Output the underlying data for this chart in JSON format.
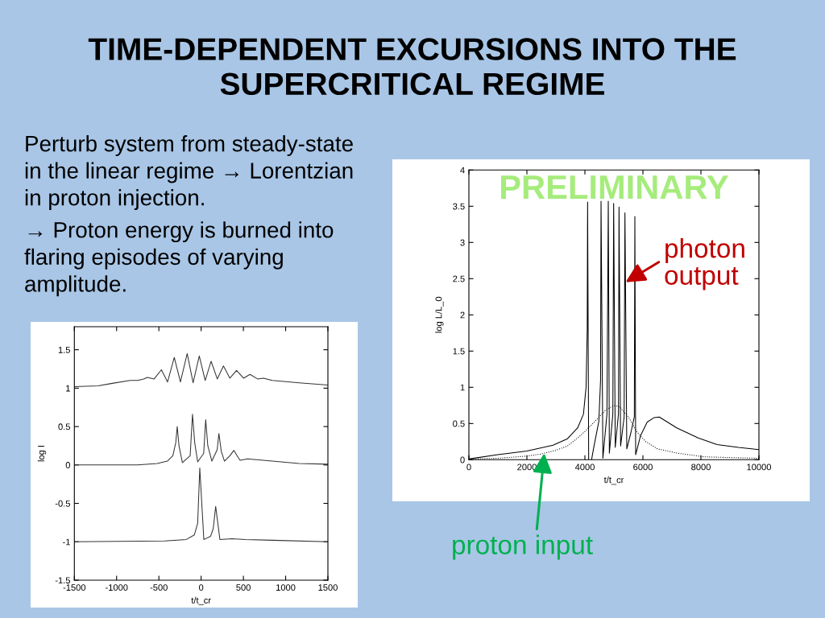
{
  "chart_data": [
    {
      "type": "other",
      "title": "TIME-DEPENDENT EXCURSIONS INTO THE SUPERCRITICAL REGIME",
      "annotations": [
        "Perturb system from steady-state in the linear regime → Lorentzian in proton injection.",
        "→ Proton energy is burned into flaring episodes of varying amplitude."
      ]
    },
    {
      "type": "line",
      "xlabel": "t/t_cr",
      "ylabel": "log I",
      "xlim": [
        -1500,
        1500
      ],
      "xticks": [
        -1500,
        -1000,
        -500,
        0,
        500,
        1000,
        1500
      ],
      "ylim": [
        -1.5,
        1.8
      ],
      "yticks": [
        -1.5,
        -1,
        -0.5,
        0,
        0.5,
        1,
        1.5
      ],
      "line_style": "solid",
      "series": [
        {
          "color": "#333333",
          "x": [
            -1500,
            -1220,
            -1065,
            -840,
            -750,
            -680,
            -636,
            -556,
            -470,
            -397,
            -318,
            -245,
            -165,
            -95,
            -22,
            48,
            118,
            191,
            264,
            340,
            419,
            502,
            578,
            667,
            737,
            842,
            1160,
            1500
          ],
          "values": [
            1.02,
            1.03,
            1.06,
            1.1,
            1.1,
            1.12,
            1.14,
            1.12,
            1.24,
            1.08,
            1.4,
            1.08,
            1.45,
            1.07,
            1.42,
            1.1,
            1.35,
            1.12,
            1.29,
            1.13,
            1.23,
            1.13,
            1.18,
            1.12,
            1.13,
            1.1,
            1.07,
            1.04
          ]
        },
        {
          "color": "#333333",
          "x": [
            -1500,
            -750,
            -520,
            -400,
            -335,
            -300,
            -283,
            -262,
            -222,
            -130,
            -102,
            -76,
            -41,
            30,
            54,
            79,
            127,
            190,
            210,
            238,
            276,
            340,
            388,
            420,
            461,
            550,
            842,
            1160,
            1500
          ],
          "values": [
            0,
            0,
            0.02,
            0.05,
            0.12,
            0.29,
            0.5,
            0.25,
            0.03,
            0.12,
            0.66,
            0.29,
            0.04,
            0.15,
            0.59,
            0.25,
            0.05,
            0.2,
            0.41,
            0.18,
            0.05,
            0.12,
            0.19,
            0.13,
            0.06,
            0.08,
            0.05,
            0.02,
            0.01
          ]
        },
        {
          "color": "#333333",
          "x": [
            -1500,
            -430,
            -175,
            -80,
            -41,
            -16,
            32,
            111,
            143,
            172,
            222,
            365,
            524,
            842,
            1500
          ],
          "values": [
            -1,
            -0.99,
            -0.97,
            -0.91,
            -0.76,
            -0.04,
            -0.97,
            -0.93,
            -0.83,
            -0.54,
            -0.97,
            -0.96,
            -0.97,
            -0.98,
            -1
          ]
        }
      ]
    },
    {
      "type": "line",
      "xlabel": "t/t_cr",
      "ylabel": "log L/L_0",
      "xlim": [
        0,
        10000
      ],
      "xticks": [
        0,
        2000,
        4000,
        6000,
        8000,
        10000
      ],
      "ylim": [
        0,
        4
      ],
      "yticks": [
        0,
        0.5,
        1,
        1.5,
        2,
        2.5,
        3,
        3.5,
        4
      ],
      "series": [
        {
          "color": "#000000",
          "line_style": "solid",
          "x": [
            0,
            1000,
            2000,
            2900,
            3400,
            3750,
            3950,
            4040,
            4080,
            4093,
            4130,
            4180,
            4230,
            4300,
            4480,
            4540,
            4556,
            4620,
            4760,
            4806,
            4843,
            4963,
            4991,
            5046,
            5157,
            5176,
            5231,
            5352,
            5380,
            5444,
            5583,
            5704,
            5722,
            5750,
            5917,
            6148,
            6380,
            6565,
            7167,
            7907,
            8556,
            9296,
            10000
          ],
          "values": [
            0.01,
            0.07,
            0.12,
            0.2,
            0.29,
            0.44,
            0.63,
            1.0,
            1.8,
            3.56,
            0,
            null,
            0,
            0.16,
            0.53,
            1.1,
            3.57,
            0.02,
            0.63,
            3.57,
            0.09,
            0.63,
            3.54,
            0.17,
            0.63,
            3.49,
            0.19,
            0.59,
            3.41,
            0.15,
            0.37,
            0.59,
            3.36,
            0.07,
            0.33,
            0.52,
            0.58,
            0.59,
            0.44,
            0.3,
            0.21,
            0.17,
            0.14
          ]
        },
        {
          "color": "#000000",
          "line_style": "dotted",
          "x": [
            0,
            1000,
            2000,
            2500,
            3000,
            3400,
            3750,
            4000,
            4400,
            4700,
            5000,
            5200,
            5500,
            5800,
            6100,
            6500,
            7200,
            8100,
            9000,
            10000
          ],
          "values": [
            0.01,
            0.02,
            0.05,
            0.08,
            0.13,
            0.19,
            0.3,
            0.39,
            0.55,
            0.68,
            0.75,
            0.73,
            0.59,
            0.38,
            0.25,
            0.15,
            0.09,
            0.04,
            0.03,
            0.02
          ]
        }
      ],
      "annotations": [
        "PRELIMINARY",
        {
          "text": "photon output",
          "x": 5400,
          "y": 2.45
        },
        {
          "text": "proton input",
          "x": 2600,
          "y": 0.09
        }
      ]
    }
  ]
}
